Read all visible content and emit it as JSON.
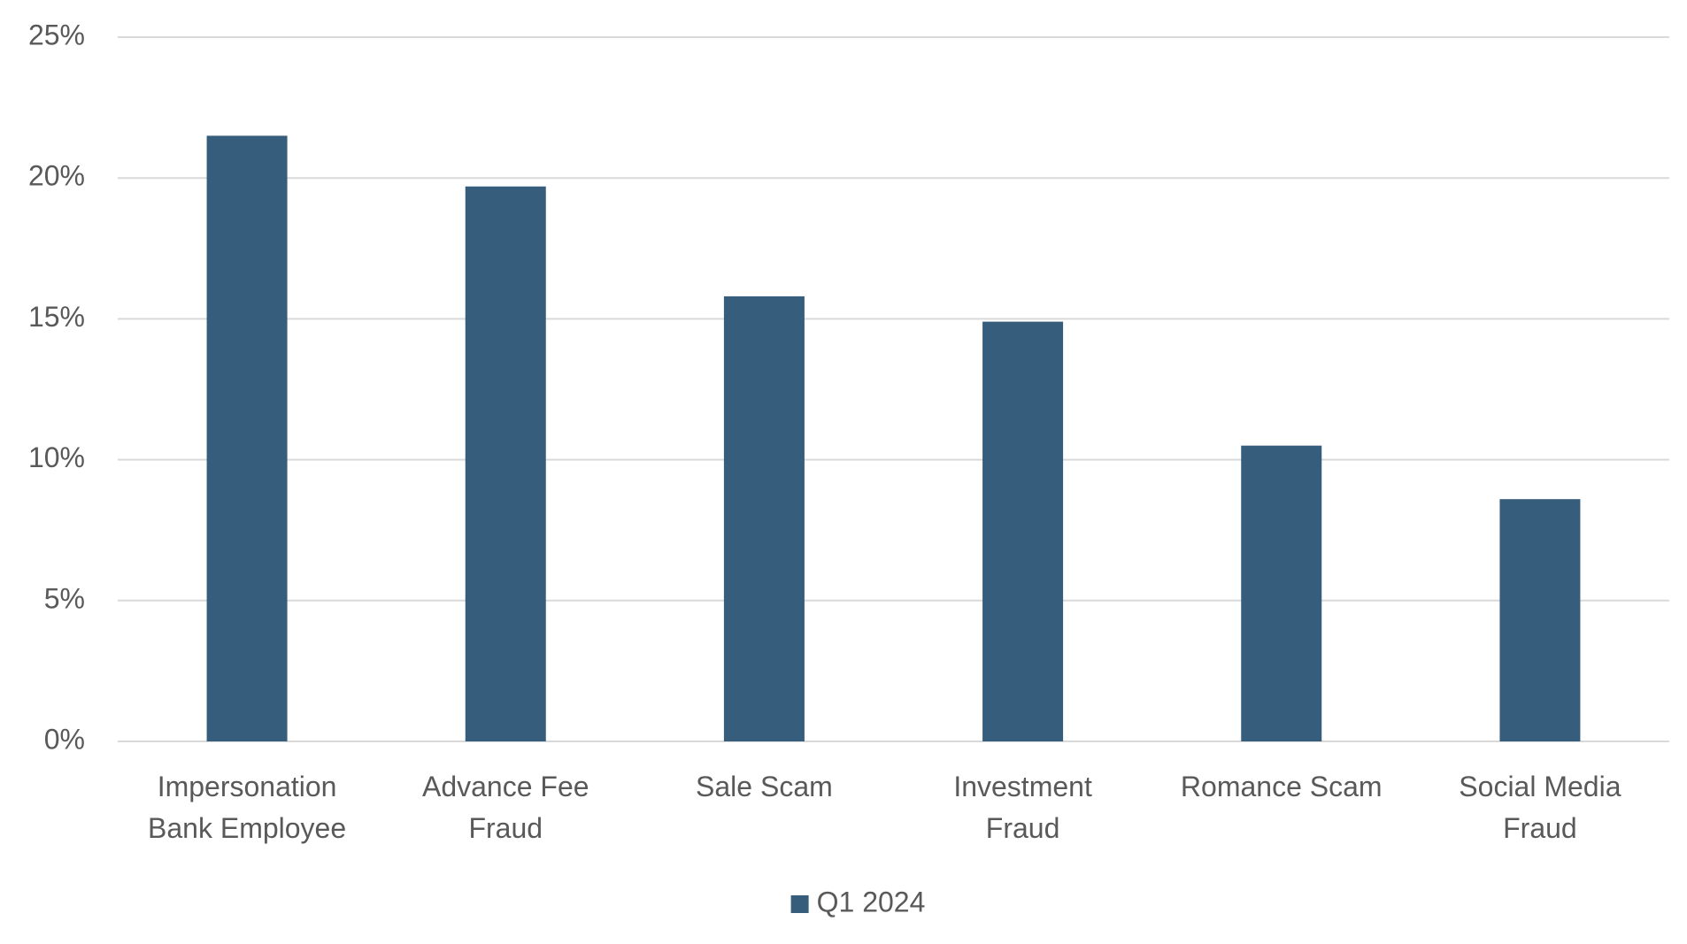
{
  "chart_data": {
    "type": "bar",
    "categories": [
      "Impersonation\nBank Employee",
      "Advance Fee\nFraud",
      "Sale Scam",
      "Investment\nFraud",
      "Romance Scam",
      "Social Media\nFraud"
    ],
    "series": [
      {
        "name": "Q1 2024",
        "color": "#375d7d",
        "values": [
          21.5,
          19.7,
          15.8,
          14.9,
          10.5,
          8.6
        ]
      }
    ],
    "ylim": [
      0,
      25
    ],
    "yticks": [
      {
        "value": 0,
        "label": "0%"
      },
      {
        "value": 5,
        "label": "5%"
      },
      {
        "value": 10,
        "label": "10%"
      },
      {
        "value": 15,
        "label": "15%"
      },
      {
        "value": 20,
        "label": "20%"
      },
      {
        "value": 25,
        "label": "25%"
      }
    ],
    "grid": true,
    "legend": "bottom"
  }
}
